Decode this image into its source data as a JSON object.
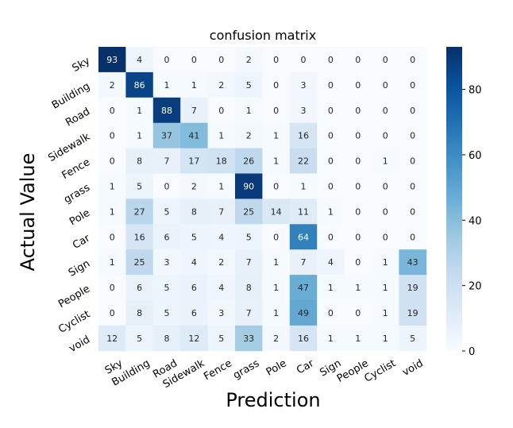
{
  "chart_data": {
    "type": "heatmap",
    "title": "confusion matrix",
    "xlabel": "Prediction",
    "ylabel": "Actual Value",
    "x_categories": [
      "Sky",
      "Building",
      "Road",
      "Sidewalk",
      "Fence",
      "grass",
      "Pole",
      "Car",
      "Sign",
      "People",
      "Cyclist",
      "void"
    ],
    "y_categories": [
      "Sky",
      "Building",
      "Road",
      "Sidewalk",
      "Fence",
      "grass",
      "Pole",
      "Car",
      "Sign",
      "People",
      "Cyclist",
      "void"
    ],
    "values": [
      [
        93,
        4,
        0,
        0,
        0,
        2,
        0,
        0,
        0,
        0,
        0,
        0
      ],
      [
        2,
        86,
        1,
        1,
        2,
        5,
        0,
        3,
        0,
        0,
        0,
        0
      ],
      [
        0,
        1,
        88,
        7,
        0,
        1,
        0,
        3,
        0,
        0,
        0,
        0
      ],
      [
        0,
        1,
        37,
        41,
        1,
        2,
        1,
        16,
        0,
        0,
        0,
        0
      ],
      [
        0,
        8,
        7,
        17,
        18,
        26,
        1,
        22,
        0,
        0,
        1,
        0
      ],
      [
        1,
        5,
        0,
        2,
        1,
        90,
        0,
        1,
        0,
        0,
        0,
        0
      ],
      [
        1,
        27,
        5,
        8,
        7,
        25,
        14,
        11,
        1,
        0,
        0,
        0
      ],
      [
        0,
        16,
        6,
        5,
        4,
        5,
        0,
        64,
        0,
        0,
        0,
        0
      ],
      [
        1,
        25,
        3,
        4,
        2,
        7,
        1,
        7,
        4,
        0,
        1,
        43
      ],
      [
        0,
        6,
        5,
        6,
        4,
        8,
        1,
        47,
        1,
        1,
        1,
        19
      ],
      [
        0,
        8,
        5,
        6,
        3,
        7,
        1,
        49,
        0,
        0,
        1,
        19
      ],
      [
        12,
        5,
        8,
        12,
        5,
        33,
        2,
        16,
        1,
        1,
        1,
        5
      ]
    ],
    "colormap": "Blues",
    "colormap_stops": [
      "#f7fbff",
      "#deebf7",
      "#c6dbef",
      "#9ecae1",
      "#6baed6",
      "#4292c6",
      "#2171b5",
      "#08519c",
      "#08306b"
    ],
    "vmin": 0,
    "vmax": 93,
    "colorbar_ticks": [
      0,
      20,
      40,
      60,
      80
    ],
    "colorbar_tick_labels": [
      "0",
      "20",
      "40",
      "60",
      "80"
    ],
    "annotation_dark_color": "#262626",
    "annotation_light_color": "#ffffff"
  }
}
